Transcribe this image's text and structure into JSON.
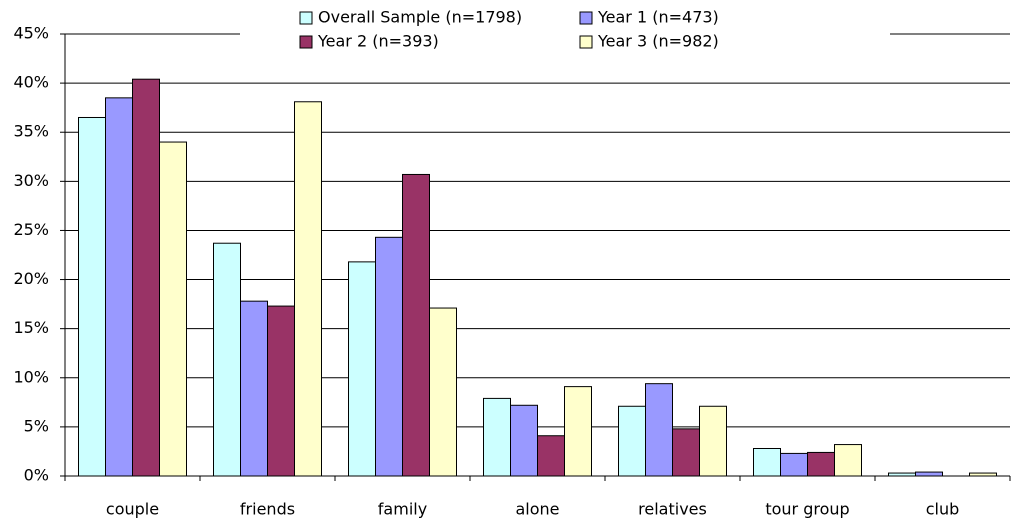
{
  "chart_data": {
    "type": "bar",
    "categories": [
      "couple",
      "friends",
      "family",
      "alone",
      "relatives",
      "tour group",
      "club"
    ],
    "series": [
      {
        "name": "Overall Sample (n=1798)",
        "color": "#ccffff",
        "values": [
          36.5,
          23.7,
          21.8,
          7.9,
          7.1,
          2.8,
          0.3
        ]
      },
      {
        "name": "Year 1 (n=473)",
        "color": "#9999ff",
        "values": [
          38.5,
          17.8,
          24.3,
          7.2,
          9.4,
          2.3,
          0.4
        ]
      },
      {
        "name": "Year 2 (n=393)",
        "color": "#993366",
        "values": [
          40.4,
          17.3,
          30.7,
          4.1,
          4.8,
          2.4,
          0
        ]
      },
      {
        "name": "Year 3 (n=982)",
        "color": "#ffffcc",
        "values": [
          34.0,
          38.1,
          17.1,
          9.1,
          7.1,
          3.2,
          0.3
        ]
      }
    ],
    "ylim": [
      0,
      45
    ],
    "yticks": [
      {
        "value": 0,
        "label": "0%"
      },
      {
        "value": 5,
        "label": "5%"
      },
      {
        "value": 10,
        "label": "10%"
      },
      {
        "value": 15,
        "label": "15%"
      },
      {
        "value": 20,
        "label": "20%"
      },
      {
        "value": 25,
        "label": "25%"
      },
      {
        "value": 30,
        "label": "30%"
      },
      {
        "value": 35,
        "label": "35%"
      },
      {
        "value": 40,
        "label": "40%"
      },
      {
        "value": 45,
        "label": "45%"
      }
    ],
    "grid": true
  }
}
